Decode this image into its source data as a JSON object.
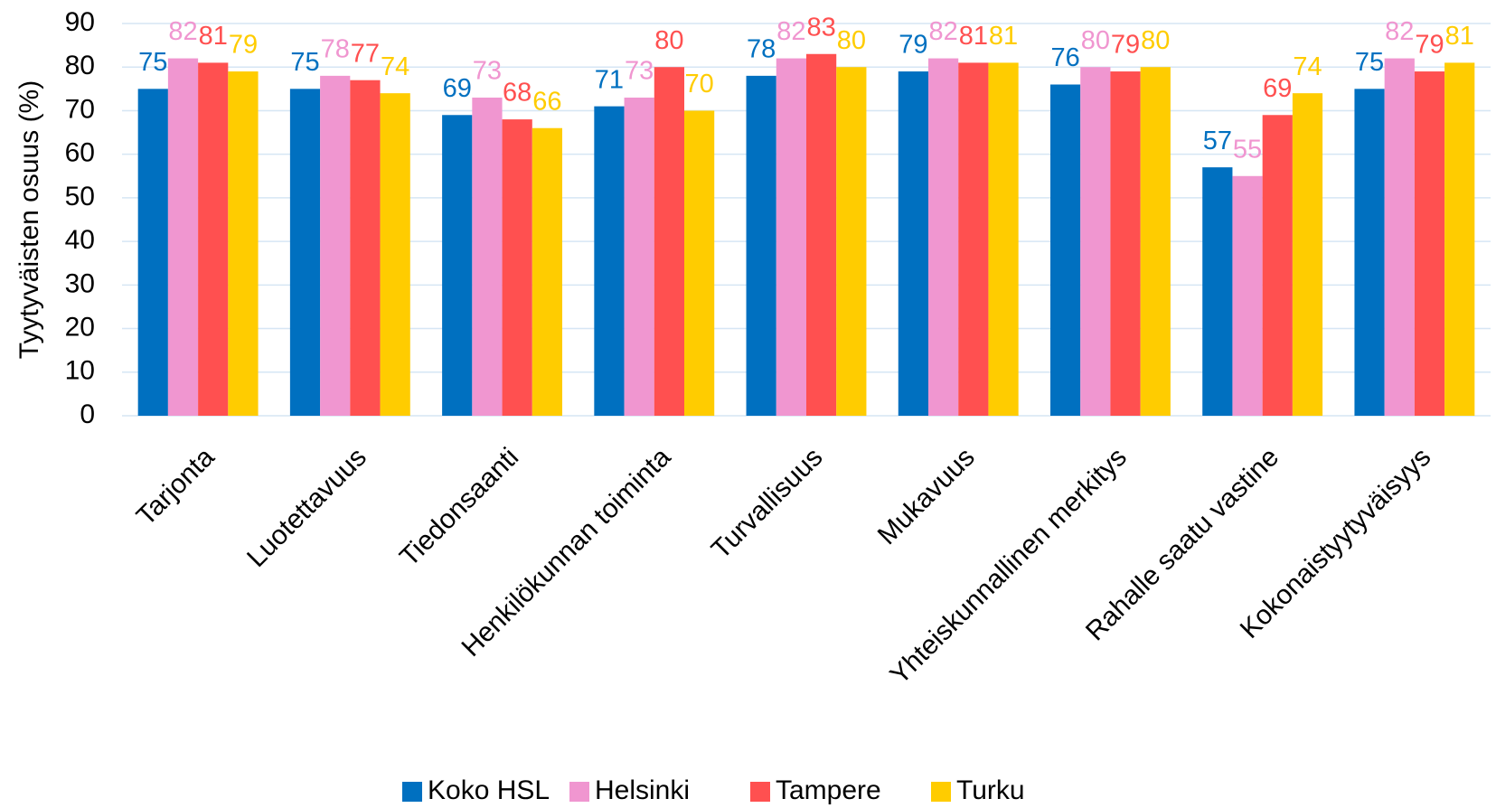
{
  "chart_data": {
    "type": "bar",
    "y_label": "Tyytyväisten osuus (%)",
    "categories": [
      "Tarjonta",
      "Luotettavuus",
      "Tiedonsaanti",
      "Henkilökunnan toiminta",
      "Turvallisuus",
      "Mukavuus",
      "Yhteiskunnallinen merkitys",
      "Rahalle saatu vastine",
      "Kokonaistyytyväisyys"
    ],
    "series": [
      {
        "name": "Koko HSL",
        "color": "#0070c0",
        "values": [
          75,
          75,
          69,
          71,
          78,
          79,
          76,
          57,
          75
        ]
      },
      {
        "name": "Helsinki",
        "color": "#f096d0",
        "values": [
          82,
          78,
          73,
          73,
          82,
          82,
          80,
          55,
          82
        ]
      },
      {
        "name": "Tampere",
        "color": "#ff5050",
        "values": [
          81,
          77,
          68,
          80,
          83,
          81,
          79,
          69,
          79
        ]
      },
      {
        "name": "Turku",
        "color": "#ffcc00",
        "values": [
          79,
          74,
          66,
          70,
          80,
          81,
          80,
          74,
          81
        ]
      }
    ],
    "ylim": [
      0,
      90
    ],
    "yticks": [
      0,
      10,
      20,
      30,
      40,
      50,
      60,
      70,
      80,
      90
    ],
    "grid": true,
    "legend": "bottom"
  }
}
